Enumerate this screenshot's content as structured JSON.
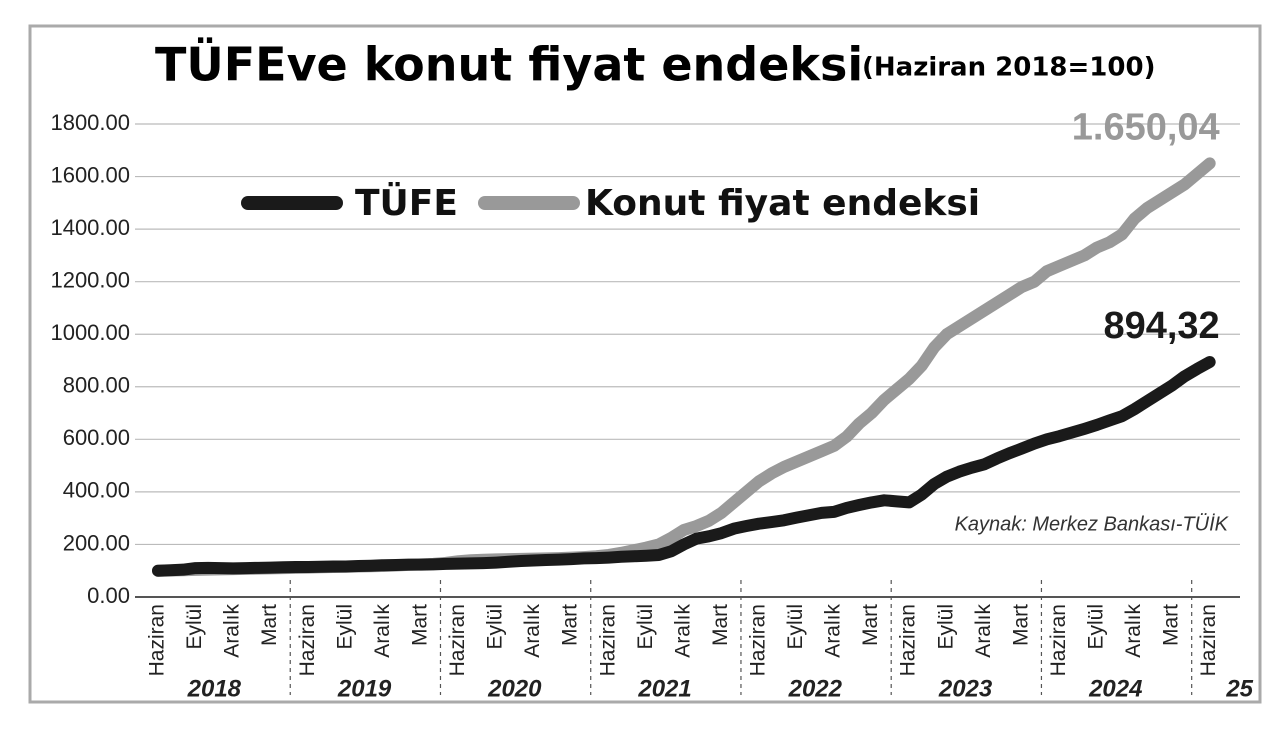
{
  "chart_data": {
    "type": "line",
    "title": "TÜFEve konut fiyat endeksi",
    "subtitle": "(Haziran 2018=100)",
    "source": "Kaynak: Merkez Bankası-TÜİK",
    "categories": [
      "Haziran",
      null,
      null,
      "Eylül",
      null,
      null,
      "Aralık",
      null,
      null,
      "Mart",
      null,
      null,
      "Haziran",
      null,
      null,
      "Eylül",
      null,
      null,
      "Aralık",
      null,
      null,
      "Mart",
      null,
      null,
      "Haziran",
      null,
      null,
      "Eylül",
      null,
      null,
      "Aralık",
      null,
      null,
      "Mart",
      null,
      null,
      "Haziran",
      null,
      null,
      "Eylül",
      null,
      null,
      "Aralık",
      null,
      null,
      "Mart",
      null,
      null,
      "Haziran",
      null,
      null,
      "Eylül",
      null,
      null,
      "Aralık",
      null,
      null,
      "Mart",
      null,
      null,
      "Haziran",
      null,
      null,
      "Eylül",
      null,
      null,
      "Aralık",
      null,
      null,
      "Mart",
      null,
      null,
      "Haziran",
      null,
      null,
      "Eylül",
      null,
      null,
      "Aralık",
      null,
      null,
      "Mart",
      null,
      null,
      "Haziran"
    ],
    "years": [
      "2018",
      "2019",
      "2020",
      "2021",
      "2022",
      "2023",
      "2024",
      "25"
    ],
    "series": [
      {
        "name": "TÜFE",
        "color": "#1a1a1a",
        "values": [
          100,
          102,
          104,
          110,
          111,
          110,
          109,
          110,
          111,
          112,
          113,
          114,
          114,
          115,
          116,
          116,
          118,
          119,
          121,
          122,
          123,
          123,
          124,
          126,
          127,
          128,
          129,
          131,
          134,
          137,
          139,
          141,
          142,
          144,
          147,
          148,
          150,
          153,
          155,
          157,
          160,
          174,
          200,
          222,
          231,
          243,
          260,
          270,
          279,
          285,
          292,
          302,
          311,
          320,
          324,
          339,
          350,
          360,
          368,
          364,
          360,
          390,
          430,
          458,
          477,
          492,
          505,
          527,
          547,
          565,
          584,
          600,
          612,
          626,
          640,
          655,
          672,
          688,
          715,
          745,
          775,
          805,
          840,
          868,
          894.32
        ],
        "value_labels": [
          null,
          null,
          null,
          null,
          null,
          null,
          null,
          null,
          null,
          null,
          null,
          null,
          null,
          null,
          null,
          null,
          null,
          null,
          null,
          null,
          null,
          null,
          null,
          null,
          null,
          null,
          null,
          null,
          null,
          null,
          null,
          null,
          null,
          null,
          null,
          null,
          null,
          null,
          null,
          null,
          null,
          null,
          null,
          null,
          null,
          null,
          null,
          null,
          null,
          null,
          null,
          null,
          null,
          null,
          null,
          null,
          null,
          null,
          null,
          null,
          null,
          null,
          null,
          null,
          null,
          null,
          null,
          null,
          null,
          null,
          null,
          null,
          null,
          null,
          null,
          null,
          null,
          null,
          null,
          null,
          null,
          null,
          null,
          null,
          "894,32"
        ]
      },
      {
        "name": "Konut fiyat endeksi",
        "color": "#999999",
        "values": [
          100,
          101,
          102,
          103,
          104,
          105,
          106,
          107,
          108,
          109,
          110,
          111,
          112,
          113,
          114,
          115,
          116,
          117,
          118,
          120,
          122,
          124,
          126,
          130,
          136,
          140,
          142,
          143,
          144,
          145,
          146,
          147,
          148,
          150,
          152,
          155,
          160,
          168,
          178,
          188,
          200,
          225,
          255,
          270,
          290,
          320,
          360,
          400,
          440,
          470,
          495,
          515,
          535,
          555,
          575,
          610,
          660,
          700,
          750,
          790,
          830,
          880,
          950,
          1000,
          1030,
          1060,
          1090,
          1120,
          1150,
          1180,
          1200,
          1240,
          1260,
          1280,
          1300,
          1330,
          1350,
          1380,
          1440,
          1480,
          1510,
          1540,
          1570,
          1610,
          1650.04
        ],
        "value_labels": [
          null,
          null,
          null,
          null,
          null,
          null,
          null,
          null,
          null,
          null,
          null,
          null,
          null,
          null,
          null,
          null,
          null,
          null,
          null,
          null,
          null,
          null,
          null,
          null,
          null,
          null,
          null,
          null,
          null,
          null,
          null,
          null,
          null,
          null,
          null,
          null,
          null,
          null,
          null,
          null,
          null,
          null,
          null,
          null,
          null,
          null,
          null,
          null,
          null,
          null,
          null,
          null,
          null,
          null,
          null,
          null,
          null,
          null,
          null,
          null,
          null,
          null,
          null,
          null,
          null,
          null,
          null,
          null,
          null,
          null,
          null,
          null,
          null,
          null,
          null,
          null,
          null,
          null,
          null,
          null,
          null,
          null,
          null,
          null,
          "1.650,04"
        ]
      }
    ],
    "ylim": [
      0,
      1800
    ],
    "yticks": [
      {
        "value": 0,
        "label": "0.00"
      },
      {
        "value": 200,
        "label": "200.00"
      },
      {
        "value": 400,
        "label": "400.00"
      },
      {
        "value": 600,
        "label": "600.00"
      },
      {
        "value": 800,
        "label": "800.00"
      },
      {
        "value": 1000,
        "label": "1000.00"
      },
      {
        "value": 1200,
        "label": "1200.00"
      },
      {
        "value": 1400,
        "label": "1400.00"
      },
      {
        "value": 1600,
        "label": "1600.00"
      },
      {
        "value": 1800,
        "label": "1800.00"
      }
    ],
    "grid": true
  }
}
